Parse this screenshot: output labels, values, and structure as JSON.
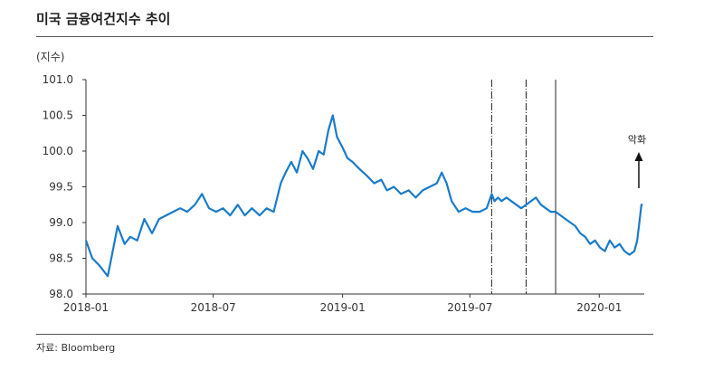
{
  "title": "미국 금융여건지수 추이",
  "source": "자료: Bloomberg",
  "chart_data": {
    "type": "line",
    "ylabel": "(지수)",
    "ylim": [
      98.0,
      101.0
    ],
    "yticks": [
      "101.0",
      "100.5",
      "100.0",
      "99.5",
      "99.0",
      "98.5",
      "98.0"
    ],
    "xticks": [
      "2018-01",
      "2018-07",
      "2019-01",
      "2019-07",
      "2020-01"
    ],
    "grid": false,
    "line_color": "#1a7bc9",
    "annotation": "악화",
    "vlines": [
      {
        "x": "2019-08-01",
        "style": "dash-dot"
      },
      {
        "x": "2019-09-19",
        "style": "dash-dot"
      },
      {
        "x": "2019-10-31",
        "style": "solid"
      }
    ],
    "series": [
      {
        "x": [
          "2018-01-01",
          "2018-01-10",
          "2018-01-20",
          "2018-02-01",
          "2018-02-07",
          "2018-02-15",
          "2018-02-25",
          "2018-03-05",
          "2018-03-15",
          "2018-03-25",
          "2018-04-05",
          "2018-04-15",
          "2018-04-25",
          "2018-05-05",
          "2018-05-15",
          "2018-05-25",
          "2018-06-05",
          "2018-06-15",
          "2018-06-25",
          "2018-07-05",
          "2018-07-15",
          "2018-07-25",
          "2018-08-05",
          "2018-08-15",
          "2018-08-25",
          "2018-09-05",
          "2018-09-15",
          "2018-09-25",
          "2018-10-05",
          "2018-10-12",
          "2018-10-20",
          "2018-10-28",
          "2018-11-05",
          "2018-11-12",
          "2018-11-20",
          "2018-11-28",
          "2018-12-05",
          "2018-12-12",
          "2018-12-18",
          "2018-12-24",
          "2019-01-01",
          "2019-01-08",
          "2019-01-15",
          "2019-01-25",
          "2019-02-05",
          "2019-02-15",
          "2019-02-25",
          "2019-03-05",
          "2019-03-15",
          "2019-03-25",
          "2019-04-05",
          "2019-04-15",
          "2019-04-25",
          "2019-05-05",
          "2019-05-15",
          "2019-05-22",
          "2019-05-29",
          "2019-06-05",
          "2019-06-15",
          "2019-06-25",
          "2019-07-05",
          "2019-07-15",
          "2019-07-25",
          "2019-08-01",
          "2019-08-05",
          "2019-08-10",
          "2019-08-15",
          "2019-08-22",
          "2019-08-29",
          "2019-09-05",
          "2019-09-12",
          "2019-09-19",
          "2019-09-26",
          "2019-10-03",
          "2019-10-10",
          "2019-10-17",
          "2019-10-24",
          "2019-10-31",
          "2019-11-07",
          "2019-11-14",
          "2019-11-21",
          "2019-11-28",
          "2019-12-05",
          "2019-12-12",
          "2019-12-19",
          "2019-12-26",
          "2020-01-02",
          "2020-01-09",
          "2020-01-16",
          "2020-01-23",
          "2020-01-30",
          "2020-02-06",
          "2020-02-13",
          "2020-02-20",
          "2020-02-24",
          "2020-02-27",
          "2020-03-01",
          "2020-03-03"
        ],
        "values": [
          98.75,
          98.5,
          98.4,
          98.25,
          98.55,
          98.95,
          98.7,
          98.8,
          98.75,
          99.05,
          98.85,
          99.05,
          99.1,
          99.15,
          99.2,
          99.15,
          99.25,
          99.4,
          99.2,
          99.15,
          99.2,
          99.1,
          99.25,
          99.1,
          99.2,
          99.1,
          99.2,
          99.15,
          99.55,
          99.7,
          99.85,
          99.7,
          100.0,
          99.9,
          99.75,
          100.0,
          99.95,
          100.3,
          100.5,
          100.2,
          100.05,
          99.9,
          99.85,
          99.75,
          99.65,
          99.55,
          99.6,
          99.45,
          99.5,
          99.4,
          99.45,
          99.35,
          99.45,
          99.5,
          99.55,
          99.7,
          99.55,
          99.3,
          99.15,
          99.2,
          99.15,
          99.15,
          99.2,
          99.4,
          99.3,
          99.35,
          99.3,
          99.35,
          99.3,
          99.25,
          99.2,
          99.25,
          99.3,
          99.35,
          99.25,
          99.2,
          99.15,
          99.15,
          99.1,
          99.05,
          99.0,
          98.95,
          98.85,
          98.8,
          98.7,
          98.75,
          98.65,
          98.6,
          98.75,
          98.65,
          98.7,
          98.6,
          98.55,
          98.6,
          98.75,
          99.0,
          99.25,
          99.25
        ]
      }
    ]
  }
}
